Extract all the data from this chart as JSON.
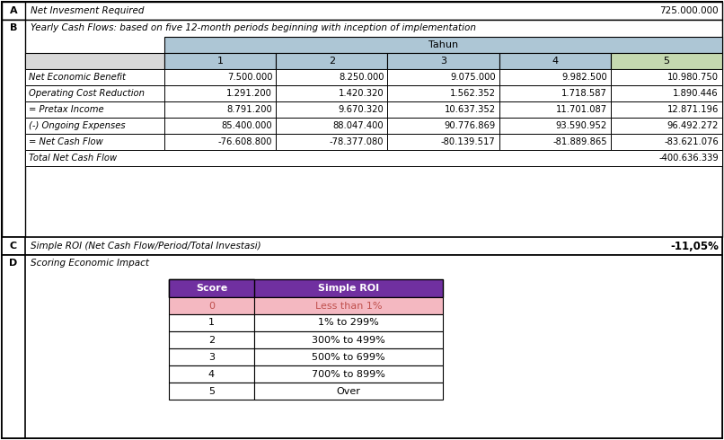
{
  "section_A_label": "A",
  "section_A_text": "Net Invesment Required",
  "section_A_value": "725.000.000",
  "section_B_label": "B",
  "section_B_text": "Yearly Cash Flows: based on five 12-month periods beginning with inception of implementation",
  "tahun_header": "Tahun",
  "year_headers": [
    "1",
    "2",
    "3",
    "4",
    "5"
  ],
  "rows": [
    {
      "label": "Net Economic Benefit",
      "values": [
        "7.500.000",
        "8.250.000",
        "9.075.000",
        "9.982.500",
        "10.980.750"
      ]
    },
    {
      "label": "Operating Cost Reduction",
      "values": [
        "1.291.200",
        "1.420.320",
        "1.562.352",
        "1.718.587",
        "1.890.446"
      ]
    },
    {
      "label": "= Pretax Income",
      "values": [
        "8.791.200",
        "9.670.320",
        "10.637.352",
        "11.701.087",
        "12.871.196"
      ]
    },
    {
      "label": "(-) Ongoing Expenses",
      "values": [
        "85.400.000",
        "88.047.400",
        "90.776.869",
        "93.590.952",
        "96.492.272"
      ]
    },
    {
      "label": "= Net Cash Flow",
      "values": [
        "-76.608.800",
        "-78.377.080",
        "-80.139.517",
        "-81.889.865",
        "-83.621.076"
      ]
    }
  ],
  "total_net_label": "Total Net Cash Flow",
  "total_net_value": "-400.636.339",
  "section_C_label": "C",
  "section_C_text": "Simple ROI (Net Cash Flow/Period/Total Investasi)",
  "section_C_value": "-11,05%",
  "section_D_label": "D",
  "section_D_text": "Scoring Economic Impact",
  "score_table_headers": [
    "Score",
    "Simple ROI"
  ],
  "score_table_rows": [
    [
      "0",
      "Less than 1%"
    ],
    [
      "1",
      "1% to 299%"
    ],
    [
      "2",
      "300% to 499%"
    ],
    [
      "3",
      "500% to 699%"
    ],
    [
      "4",
      "700% to 899%"
    ],
    [
      "5",
      "Over"
    ]
  ],
  "highlight_row": 0,
  "color_header_blue": "#adc6d5",
  "color_header_green": "#c5d9b0",
  "color_year_row_empty": "#d8d8d8",
  "color_purple_header": "#7030a0",
  "color_pink_row": "#f4b8c1",
  "color_pink_text": "#c0504d",
  "color_white": "#ffffff",
  "color_border": "#000000",
  "color_light_gray": "#d8d8d8"
}
